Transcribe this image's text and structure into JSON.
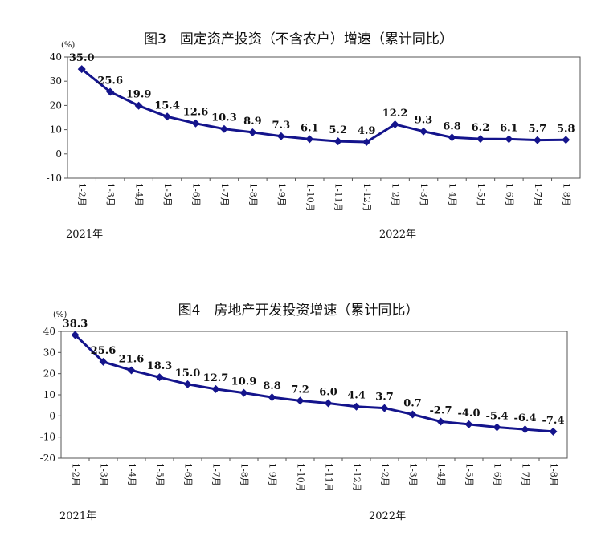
{
  "chart_data": [
    {
      "type": "line",
      "title": "图3　固定资产投资（不含农户）增速（累计同比）",
      "y_unit": "(%)",
      "ylim": [
        -10,
        40
      ],
      "yticks": [
        -10,
        0,
        10,
        20,
        30,
        40
      ],
      "grid": false,
      "color": "#14148c",
      "categories": [
        "1-2月",
        "1-3月",
        "1-4月",
        "1-5月",
        "1-6月",
        "1-7月",
        "1-8月",
        "1-9月",
        "1-10月",
        "1-11月",
        "1-12月",
        "1-2月",
        "1-3月",
        "1-4月",
        "1-5月",
        "1-6月",
        "1-7月",
        "1-8月"
      ],
      "values": [
        35.0,
        25.6,
        19.9,
        15.4,
        12.6,
        10.3,
        8.9,
        7.3,
        6.1,
        5.2,
        4.9,
        12.2,
        9.3,
        6.8,
        6.2,
        6.1,
        5.7,
        5.8
      ],
      "labels": [
        "35.0",
        "25.6",
        "19.9",
        "15.4",
        "12.6",
        "10.3",
        "8.9",
        "7.3",
        "6.1",
        "5.2",
        "4.9",
        "12.2",
        "9.3",
        "6.8",
        "6.2",
        "6.1",
        "5.7",
        "5.8"
      ],
      "years": [
        {
          "text": "2021年",
          "at": 0
        },
        {
          "text": "2022年",
          "at": 11
        }
      ]
    },
    {
      "type": "line",
      "title": "图4　房地产开发投资增速（累计同比）",
      "y_unit": "(%)",
      "ylim": [
        -20,
        40
      ],
      "yticks": [
        -20,
        -10,
        0,
        10,
        20,
        30,
        40
      ],
      "grid": false,
      "color": "#14148c",
      "categories": [
        "1-2月",
        "1-3月",
        "1-4月",
        "1-5月",
        "1-6月",
        "1-7月",
        "1-8月",
        "1-9月",
        "1-10月",
        "1-11月",
        "1-12月",
        "1-2月",
        "1-3月",
        "1-4月",
        "1-5月",
        "1-6月",
        "1-7月",
        "1-8月"
      ],
      "values": [
        38.3,
        25.6,
        21.6,
        18.3,
        15.0,
        12.7,
        10.9,
        8.8,
        7.2,
        6.0,
        4.4,
        3.7,
        0.7,
        -2.7,
        -4.0,
        -5.4,
        -6.4,
        -7.4
      ],
      "labels": [
        "38.3",
        "25.6",
        "21.6",
        "18.3",
        "15.0",
        "12.7",
        "10.9",
        "8.8",
        "7.2",
        "6.0",
        "4.4",
        "3.7",
        "0.7",
        "-2.7",
        "-4.0",
        "-5.4",
        "-6.4",
        "-7.4"
      ],
      "years": [
        {
          "text": "2021年",
          "at": 0
        },
        {
          "text": "2022年",
          "at": 11
        }
      ]
    }
  ]
}
